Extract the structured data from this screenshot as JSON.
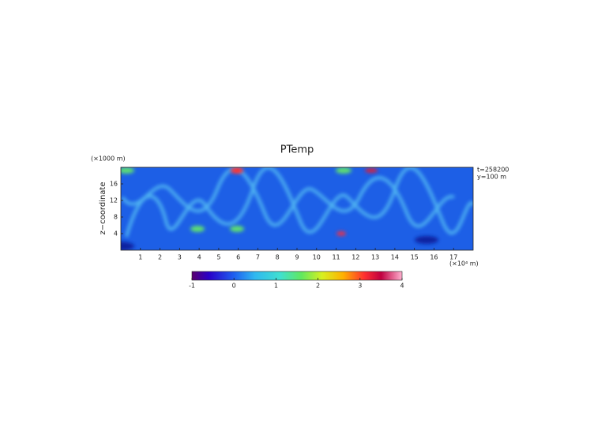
{
  "chart_data": {
    "type": "heatmap",
    "title": "PTemp",
    "y_unit": "(×1000 m)",
    "ylabel": "z−coordinate",
    "x_unit": "(×10⁴ m)",
    "annotations": [
      "t=258200",
      "y=100 m"
    ],
    "xlim": [
      0,
      18
    ],
    "xticks": [
      1,
      2,
      3,
      4,
      5,
      6,
      7,
      8,
      9,
      10,
      11,
      12,
      13,
      14,
      15,
      16,
      17
    ],
    "ylim": [
      0,
      20
    ],
    "yticks": [
      4,
      8,
      12,
      16
    ],
    "colorbar": {
      "lim": [
        -1,
        4
      ],
      "ticks": [
        -1,
        0,
        1,
        2,
        3,
        4
      ]
    }
  }
}
